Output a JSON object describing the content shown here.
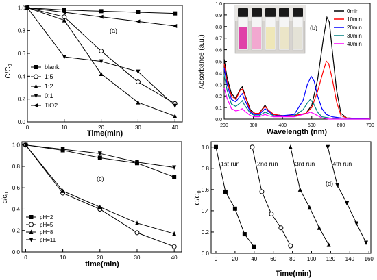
{
  "chart_data": [
    {
      "type": "line",
      "panel_label": "(a)",
      "xlabel": "Time(min)",
      "ylabel": "C/C0",
      "xlim": [
        0,
        42
      ],
      "ylim": [
        0,
        1.02
      ],
      "xticks": [
        "0",
        "10",
        "20",
        "30",
        "40"
      ],
      "yticks": [
        "0.0",
        "0.2",
        "0.4",
        "0.6",
        "0.8",
        "1.0"
      ],
      "legend_position": "left",
      "x": [
        0,
        10,
        20,
        30,
        40
      ],
      "series": [
        {
          "name": "blank",
          "marker": "square",
          "values": [
            1.0,
            0.98,
            0.97,
            0.96,
            0.95
          ]
        },
        {
          "name": "1:5",
          "marker": "circle",
          "values": [
            1.0,
            0.92,
            0.62,
            0.35,
            0.16
          ]
        },
        {
          "name": "1:2",
          "marker": "triangle-up",
          "values": [
            1.0,
            0.89,
            0.42,
            0.17,
            0.05
          ]
        },
        {
          "name": "0:1",
          "marker": "triangle-down",
          "values": [
            1.0,
            0.57,
            0.53,
            0.44,
            0.14
          ]
        },
        {
          "name": "TiO2",
          "marker": "triangle-left",
          "values": [
            1.0,
            0.96,
            0.92,
            0.88,
            0.84
          ]
        }
      ]
    },
    {
      "type": "line",
      "panel_label": "(b)",
      "xlabel": "Wavelength (nm)",
      "ylabel": "Absorbance (a.u.)",
      "xlim": [
        200,
        700
      ],
      "ylim": [
        0,
        1.0
      ],
      "xticks": [
        "200",
        "300",
        "400",
        "500",
        "600",
        "700"
      ],
      "yticks": [
        "0.0",
        "0.1",
        "0.2",
        "0.3",
        "0.4",
        "0.5",
        "0.6",
        "0.7",
        "0.8",
        "0.9",
        "1.0"
      ],
      "legend_position": "top-right",
      "inset": "photo of five sample vials",
      "series": [
        {
          "name": "0min",
          "color": "#000000",
          "points": [
            [
              200,
              0.52
            ],
            [
              210,
              0.36
            ],
            [
              225,
              0.22
            ],
            [
              240,
              0.18
            ],
            [
              255,
              0.26
            ],
            [
              262,
              0.28
            ],
            [
              270,
              0.22
            ],
            [
              290,
              0.08
            ],
            [
              305,
              0.05
            ],
            [
              320,
              0.05
            ],
            [
              340,
              0.12
            ],
            [
              350,
              0.08
            ],
            [
              370,
              0.04
            ],
            [
              400,
              0.03
            ],
            [
              440,
              0.03
            ],
            [
              480,
              0.05
            ],
            [
              500,
              0.12
            ],
            [
              520,
              0.34
            ],
            [
              540,
              0.7
            ],
            [
              552,
              0.88
            ],
            [
              560,
              0.84
            ],
            [
              570,
              0.6
            ],
            [
              585,
              0.25
            ],
            [
              600,
              0.05
            ],
            [
              620,
              0.01
            ],
            [
              700,
              0.0
            ]
          ]
        },
        {
          "name": "10min",
          "color": "#ff0000",
          "points": [
            [
              200,
              0.48
            ],
            [
              210,
              0.33
            ],
            [
              225,
              0.2
            ],
            [
              240,
              0.17
            ],
            [
              255,
              0.25
            ],
            [
              262,
              0.26
            ],
            [
              270,
              0.21
            ],
            [
              290,
              0.07
            ],
            [
              305,
              0.05
            ],
            [
              320,
              0.05
            ],
            [
              340,
              0.11
            ],
            [
              350,
              0.08
            ],
            [
              370,
              0.04
            ],
            [
              400,
              0.03
            ],
            [
              440,
              0.03
            ],
            [
              480,
              0.05
            ],
            [
              500,
              0.1
            ],
            [
              520,
              0.24
            ],
            [
              540,
              0.42
            ],
            [
              550,
              0.5
            ],
            [
              558,
              0.48
            ],
            [
              570,
              0.35
            ],
            [
              585,
              0.15
            ],
            [
              600,
              0.03
            ],
            [
              620,
              0.01
            ],
            [
              700,
              0.0
            ]
          ]
        },
        {
          "name": "20min",
          "color": "#0000ff",
          "points": [
            [
              200,
              0.44
            ],
            [
              210,
              0.3
            ],
            [
              225,
              0.17
            ],
            [
              240,
              0.15
            ],
            [
              255,
              0.2
            ],
            [
              262,
              0.22
            ],
            [
              270,
              0.17
            ],
            [
              290,
              0.06
            ],
            [
              305,
              0.04
            ],
            [
              320,
              0.04
            ],
            [
              340,
              0.09
            ],
            [
              350,
              0.07
            ],
            [
              370,
              0.03
            ],
            [
              400,
              0.03
            ],
            [
              440,
              0.04
            ],
            [
              470,
              0.16
            ],
            [
              485,
              0.3
            ],
            [
              498,
              0.37
            ],
            [
              508,
              0.33
            ],
            [
              520,
              0.2
            ],
            [
              535,
              0.09
            ],
            [
              550,
              0.04
            ],
            [
              570,
              0.02
            ],
            [
              600,
              0.01
            ],
            [
              700,
              0.0
            ]
          ]
        },
        {
          "name": "30min",
          "color": "#008080",
          "points": [
            [
              200,
              0.38
            ],
            [
              210,
              0.25
            ],
            [
              225,
              0.13
            ],
            [
              240,
              0.11
            ],
            [
              255,
              0.14
            ],
            [
              262,
              0.16
            ],
            [
              270,
              0.12
            ],
            [
              290,
              0.05
            ],
            [
              305,
              0.03
            ],
            [
              320,
              0.03
            ],
            [
              340,
              0.06
            ],
            [
              350,
              0.05
            ],
            [
              370,
              0.03
            ],
            [
              400,
              0.02
            ],
            [
              440,
              0.03
            ],
            [
              470,
              0.08
            ],
            [
              485,
              0.14
            ],
            [
              495,
              0.17
            ],
            [
              505,
              0.14
            ],
            [
              520,
              0.06
            ],
            [
              535,
              0.02
            ],
            [
              560,
              0.01
            ],
            [
              600,
              0.0
            ],
            [
              700,
              0.0
            ]
          ]
        },
        {
          "name": "40min",
          "color": "#ff00ff",
          "points": [
            [
              200,
              0.27
            ],
            [
              210,
              0.18
            ],
            [
              225,
              0.09
            ],
            [
              240,
              0.07
            ],
            [
              255,
              0.08
            ],
            [
              262,
              0.09
            ],
            [
              270,
              0.07
            ],
            [
              290,
              0.03
            ],
            [
              305,
              0.02
            ],
            [
              320,
              0.02
            ],
            [
              340,
              0.04
            ],
            [
              350,
              0.03
            ],
            [
              370,
              0.02
            ],
            [
              400,
              0.02
            ],
            [
              440,
              0.02
            ],
            [
              470,
              0.04
            ],
            [
              485,
              0.05
            ],
            [
              495,
              0.06
            ],
            [
              505,
              0.05
            ],
            [
              520,
              0.03
            ],
            [
              535,
              0.01
            ],
            [
              560,
              0.0
            ],
            [
              700,
              0.0
            ]
          ]
        }
      ]
    },
    {
      "type": "line",
      "panel_label": "(c)",
      "xlabel": "time(min)",
      "ylabel": "c/c0",
      "xlim": [
        -1,
        42
      ],
      "ylim": [
        0,
        1.03
      ],
      "xticks": [
        "0",
        "10",
        "20",
        "30",
        "40"
      ],
      "yticks": [
        "0.0",
        "0.2",
        "0.4",
        "0.6",
        "0.8",
        "1.0"
      ],
      "legend_position": "bottom-left",
      "x": [
        0,
        10,
        20,
        30,
        40
      ],
      "series": [
        {
          "name": "pH=2",
          "marker": "square",
          "values": [
            1.0,
            0.95,
            0.88,
            0.83,
            0.7
          ]
        },
        {
          "name": "pH=5",
          "marker": "circle",
          "values": [
            1.0,
            0.55,
            0.4,
            0.18,
            0.05
          ]
        },
        {
          "name": "pH=8",
          "marker": "triangle-up",
          "values": [
            1.0,
            0.57,
            0.42,
            0.27,
            0.17
          ]
        },
        {
          "name": "pH=11",
          "marker": "triangle-down",
          "values": [
            1.0,
            0.96,
            0.92,
            0.84,
            0.79
          ]
        }
      ]
    },
    {
      "type": "line",
      "panel_label": "(d)",
      "xlabel": "Time(min)",
      "ylabel": "C/C0",
      "xlim": [
        -5,
        162
      ],
      "ylim": [
        0,
        1.05
      ],
      "xticks": [
        "0",
        "20",
        "40",
        "60",
        "80",
        "100",
        "120",
        "140",
        "160"
      ],
      "yticks": [
        "0.0",
        "0.2",
        "0.4",
        "0.6",
        "0.8",
        "1.0"
      ],
      "annotations": [
        "1st run",
        "2nd run",
        "3rd run",
        "4th run"
      ],
      "series": [
        {
          "name": "1st run",
          "marker": "square",
          "x": [
            0,
            10,
            20,
            30,
            40
          ],
          "values": [
            1.0,
            0.58,
            0.42,
            0.18,
            0.06
          ]
        },
        {
          "name": "2nd run",
          "marker": "circle",
          "x": [
            38,
            48,
            58,
            68,
            78
          ],
          "values": [
            1.0,
            0.58,
            0.37,
            0.24,
            0.07
          ]
        },
        {
          "name": "3rd run",
          "marker": "triangle-up",
          "x": [
            78,
            88,
            98,
            108,
            118
          ],
          "values": [
            1.0,
            0.6,
            0.43,
            0.24,
            0.08
          ]
        },
        {
          "name": "4th run",
          "marker": "triangle-down",
          "x": [
            117,
            127,
            137,
            147,
            157
          ],
          "values": [
            1.0,
            0.64,
            0.47,
            0.28,
            0.1
          ]
        }
      ]
    }
  ]
}
